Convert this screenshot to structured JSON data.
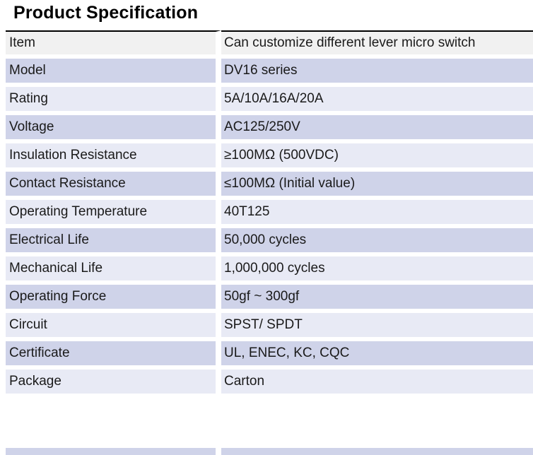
{
  "title": "Product Specification",
  "colors": {
    "row_dark": "#cfd3e9",
    "row_light": "#e8eaf5",
    "row_gray": "#f1f1f1",
    "rule": "#000000",
    "text": "#1a1a1a",
    "divider": "#ffffff"
  },
  "table": {
    "columns": [
      "key",
      "value"
    ],
    "rows": [
      {
        "key": "Item",
        "value": "Can customize different lever micro switch",
        "tone": "gray"
      },
      {
        "key": "Model",
        "value": "DV16 series",
        "tone": "dark"
      },
      {
        "key": "Rating",
        "value": "5A/10A/16A/20A",
        "tone": "light"
      },
      {
        "key": "Voltage",
        "value": "AC125/250V",
        "tone": "dark"
      },
      {
        "key": "Insulation Resistance",
        "value": "≥100MΩ (500VDC)",
        "tone": "light"
      },
      {
        "key": "Contact Resistance",
        "value": "≤100MΩ (Initial value)",
        "tone": "dark"
      },
      {
        "key": "Operating Temperature",
        "value": "40T125",
        "tone": "light"
      },
      {
        "key": "Electrical Life",
        "value": "50,000 cycles",
        "tone": "dark"
      },
      {
        "key": "Mechanical Life",
        "value": "1,000,000 cycles",
        "tone": "light"
      },
      {
        "key": "Operating Force",
        "value": "50gf ~ 300gf",
        "tone": "dark"
      },
      {
        "key": "Circuit",
        "value": "SPST/ SPDT",
        "tone": "light"
      },
      {
        "key": "Certificate",
        "value": "UL, ENEC, KC, CQC",
        "tone": "dark"
      },
      {
        "key": "Package",
        "value": "Carton",
        "tone": "light"
      }
    ]
  }
}
